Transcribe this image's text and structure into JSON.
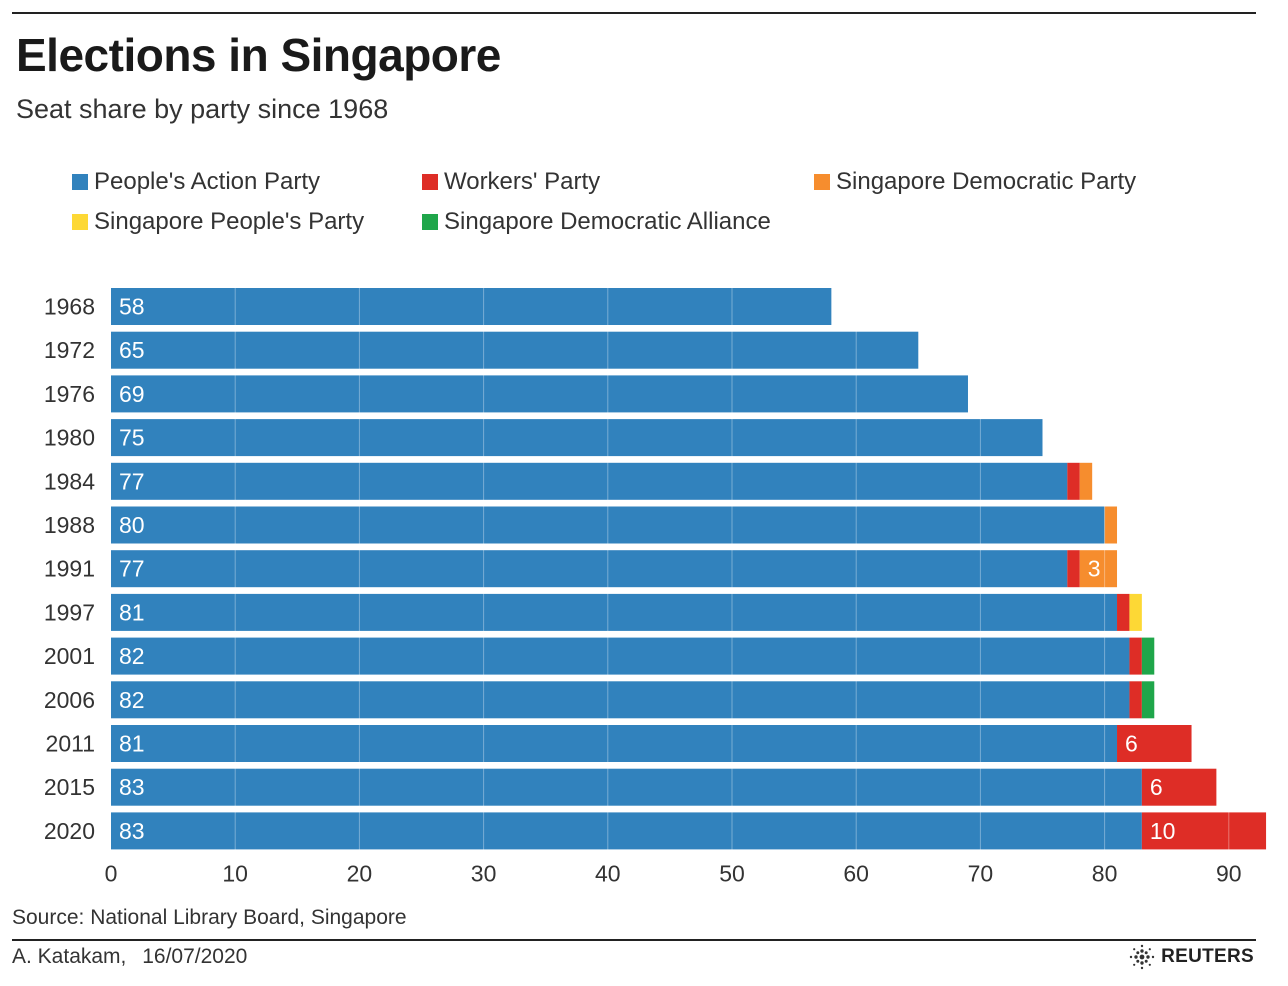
{
  "header": {
    "title": "Elections in Singapore",
    "subtitle": "Seat share by party since 1968"
  },
  "legend": [
    {
      "label": "People's Action Party",
      "color": "#3182bd"
    },
    {
      "label": "Workers' Party",
      "color": "#de2d26"
    },
    {
      "label": "Singapore Democratic Party",
      "color": "#f68d2e"
    },
    {
      "label": "Singapore People's Party",
      "color": "#fdd835"
    },
    {
      "label": "Singapore Democratic Alliance",
      "color": "#1fa64a"
    }
  ],
  "chart_data": {
    "type": "bar",
    "orientation": "horizontal",
    "stacked": true,
    "title": "Elections in Singapore",
    "subtitle": "Seat share by party since 1968",
    "categories": [
      "1968",
      "1972",
      "1976",
      "1980",
      "1984",
      "1988",
      "1991",
      "1997",
      "2001",
      "2006",
      "2011",
      "2015",
      "2020"
    ],
    "series": [
      {
        "name": "People's Action Party",
        "color": "#3182bd",
        "values": [
          58,
          65,
          69,
          75,
          77,
          80,
          77,
          81,
          82,
          82,
          81,
          83,
          83
        ]
      },
      {
        "name": "Workers' Party",
        "color": "#de2d26",
        "values": [
          0,
          0,
          0,
          0,
          1,
          0,
          1,
          1,
          1,
          1,
          6,
          6,
          10
        ]
      },
      {
        "name": "Singapore Democratic Party",
        "color": "#f68d2e",
        "values": [
          0,
          0,
          0,
          0,
          1,
          1,
          3,
          0,
          0,
          0,
          0,
          0,
          0
        ]
      },
      {
        "name": "Singapore People's Party",
        "color": "#fdd835",
        "values": [
          0,
          0,
          0,
          0,
          0,
          0,
          0,
          1,
          0,
          0,
          0,
          0,
          0
        ]
      },
      {
        "name": "Singapore Democratic Alliance",
        "color": "#1fa64a",
        "values": [
          0,
          0,
          0,
          0,
          0,
          0,
          0,
          0,
          1,
          1,
          0,
          0,
          0
        ]
      }
    ],
    "data_labels": [
      {
        "category": "1968",
        "series": "People's Action Party",
        "text": "58"
      },
      {
        "category": "1972",
        "series": "People's Action Party",
        "text": "65"
      },
      {
        "category": "1976",
        "series": "People's Action Party",
        "text": "69"
      },
      {
        "category": "1980",
        "series": "People's Action Party",
        "text": "75"
      },
      {
        "category": "1984",
        "series": "People's Action Party",
        "text": "77"
      },
      {
        "category": "1988",
        "series": "People's Action Party",
        "text": "80"
      },
      {
        "category": "1991",
        "series": "People's Action Party",
        "text": "77"
      },
      {
        "category": "1991",
        "series": "Singapore Democratic Party",
        "text": "3"
      },
      {
        "category": "1997",
        "series": "People's Action Party",
        "text": "81"
      },
      {
        "category": "2001",
        "series": "People's Action Party",
        "text": "82"
      },
      {
        "category": "2006",
        "series": "People's Action Party",
        "text": "82"
      },
      {
        "category": "2011",
        "series": "People's Action Party",
        "text": "81"
      },
      {
        "category": "2011",
        "series": "Workers' Party",
        "text": "6"
      },
      {
        "category": "2015",
        "series": "People's Action Party",
        "text": "83"
      },
      {
        "category": "2015",
        "series": "Workers' Party",
        "text": "6"
      },
      {
        "category": "2020",
        "series": "People's Action Party",
        "text": "83"
      },
      {
        "category": "2020",
        "series": "Workers' Party",
        "text": "10"
      }
    ],
    "xlim": [
      0,
      93
    ],
    "xticks": [
      0,
      10,
      20,
      30,
      40,
      50,
      60,
      70,
      80,
      90
    ],
    "xlabel": "",
    "ylabel": "",
    "grid": true,
    "gridline_color": "#ffffff",
    "legend_position": "top"
  },
  "footer": {
    "source": "Source: National Library Board, Singapore",
    "author": "A. Katakam,",
    "date": "16/07/2020",
    "brand": "REUTERS"
  }
}
